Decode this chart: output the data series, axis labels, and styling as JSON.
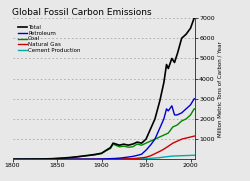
{
  "title": "Global Fossil Carbon Emissions",
  "ylabel": "Million Metric Tons of Carbon / Year",
  "xlim": [
    1800,
    2005
  ],
  "ylim": [
    0,
    7000
  ],
  "yticks": [
    1000,
    2000,
    3000,
    4000,
    5000,
    6000,
    7000
  ],
  "xticks": [
    1800,
    1850,
    1900,
    1950,
    2000
  ],
  "bg_color": "#e8e8e8",
  "legend_entries": [
    "Total",
    "Petroleum",
    "Coal",
    "Natural Gas",
    "Cement Production"
  ],
  "line_colors": [
    "#000000",
    "#0000cc",
    "#008800",
    "#cc0000",
    "#00aaaa"
  ],
  "line_widths": [
    1.2,
    1.0,
    1.0,
    1.0,
    1.0
  ],
  "total_x": [
    1800,
    1810,
    1820,
    1830,
    1840,
    1850,
    1860,
    1870,
    1880,
    1890,
    1900,
    1910,
    1913,
    1920,
    1925,
    1930,
    1935,
    1940,
    1945,
    1950,
    1955,
    1960,
    1965,
    1970,
    1973,
    1975,
    1979,
    1982,
    1985,
    1990,
    1995,
    2000,
    2004
  ],
  "total_y": [
    1,
    3,
    6,
    10,
    20,
    40,
    70,
    110,
    170,
    220,
    300,
    580,
    800,
    700,
    750,
    700,
    750,
    850,
    800,
    1000,
    1500,
    2000,
    2800,
    3800,
    4700,
    4500,
    5000,
    4800,
    5200,
    6000,
    6200,
    6500,
    7000
  ],
  "coal_x": [
    1800,
    1810,
    1820,
    1830,
    1840,
    1850,
    1860,
    1870,
    1880,
    1890,
    1900,
    1905,
    1910,
    1913,
    1920,
    1925,
    1930,
    1935,
    1940,
    1945,
    1950,
    1955,
    1960,
    1965,
    1970,
    1975,
    1980,
    1985,
    1990,
    1995,
    2000,
    2004
  ],
  "coal_y": [
    1,
    3,
    6,
    10,
    18,
    38,
    65,
    100,
    160,
    200,
    280,
    430,
    530,
    750,
    620,
    650,
    600,
    620,
    750,
    700,
    800,
    900,
    1000,
    1100,
    1200,
    1300,
    1600,
    1700,
    1900,
    2000,
    2200,
    2500
  ],
  "petro_x": [
    1800,
    1860,
    1870,
    1880,
    1890,
    1900,
    1905,
    1910,
    1915,
    1920,
    1925,
    1930,
    1935,
    1940,
    1945,
    1950,
    1955,
    1960,
    1965,
    1970,
    1973,
    1975,
    1979,
    1982,
    1985,
    1990,
    1995,
    2000,
    2004
  ],
  "petro_y": [
    0,
    0,
    1,
    3,
    6,
    12,
    20,
    30,
    40,
    55,
    80,
    110,
    140,
    190,
    250,
    450,
    700,
    1000,
    1500,
    2000,
    2500,
    2400,
    2650,
    2200,
    2200,
    2300,
    2500,
    2700,
    3000
  ],
  "gas_x": [
    1800,
    1900,
    1910,
    1920,
    1930,
    1935,
    1940,
    1945,
    1950,
    1955,
    1960,
    1965,
    1970,
    1975,
    1980,
    1985,
    1990,
    1995,
    2000,
    2004
  ],
  "gas_y": [
    0,
    5,
    10,
    15,
    20,
    30,
    50,
    70,
    100,
    170,
    280,
    380,
    500,
    650,
    800,
    900,
    1000,
    1050,
    1100,
    1150
  ],
  "cement_x": [
    1800,
    1900,
    1910,
    1920,
    1930,
    1940,
    1950,
    1955,
    1960,
    1965,
    1970,
    1975,
    1980,
    1985,
    1990,
    1995,
    2000,
    2004
  ],
  "cement_y": [
    0,
    0,
    3,
    8,
    15,
    25,
    35,
    45,
    60,
    80,
    110,
    140,
    160,
    170,
    180,
    185,
    190,
    200
  ]
}
